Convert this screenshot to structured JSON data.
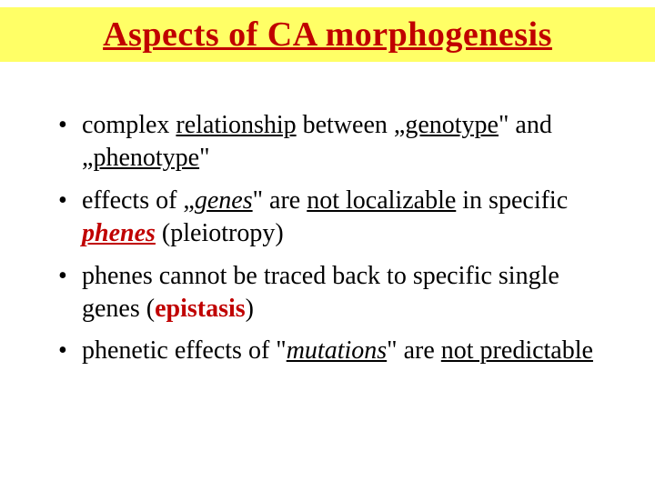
{
  "title": "Aspects of CA morphogenesis",
  "colors": {
    "title_band_bg": "#ffff66",
    "title_text": "#c00000",
    "body_text": "#000000",
    "accent_red": "#c00000",
    "page_bg": "#ffffff"
  },
  "typography": {
    "family": "Times New Roman",
    "title_fontsize": 38,
    "body_fontsize": 28,
    "title_weight": "bold"
  },
  "bullets": [
    {
      "pre1": "complex ",
      "rel": "relationship",
      "mid1": " between „",
      "geno": "genotype",
      "mid2": "\" and „",
      "pheno": "phenotype",
      "post1": "\""
    },
    {
      "pre2a": "effects of „",
      "genes": "genes",
      "mid2a": "\" are ",
      "notloc": "not localizable",
      "mid2b": " in specific ",
      "phenes": "phenes",
      "post2": " (pleiotropy)"
    },
    {
      "pre3": "phenes cannot be traced back to specific single genes (",
      "epistasis": "epistasis",
      "post3": ")"
    },
    {
      "pre4": "phenetic effects of \"",
      "mutations": "mutations",
      "mid4": "\" are ",
      "notpred": "not predictable"
    }
  ]
}
